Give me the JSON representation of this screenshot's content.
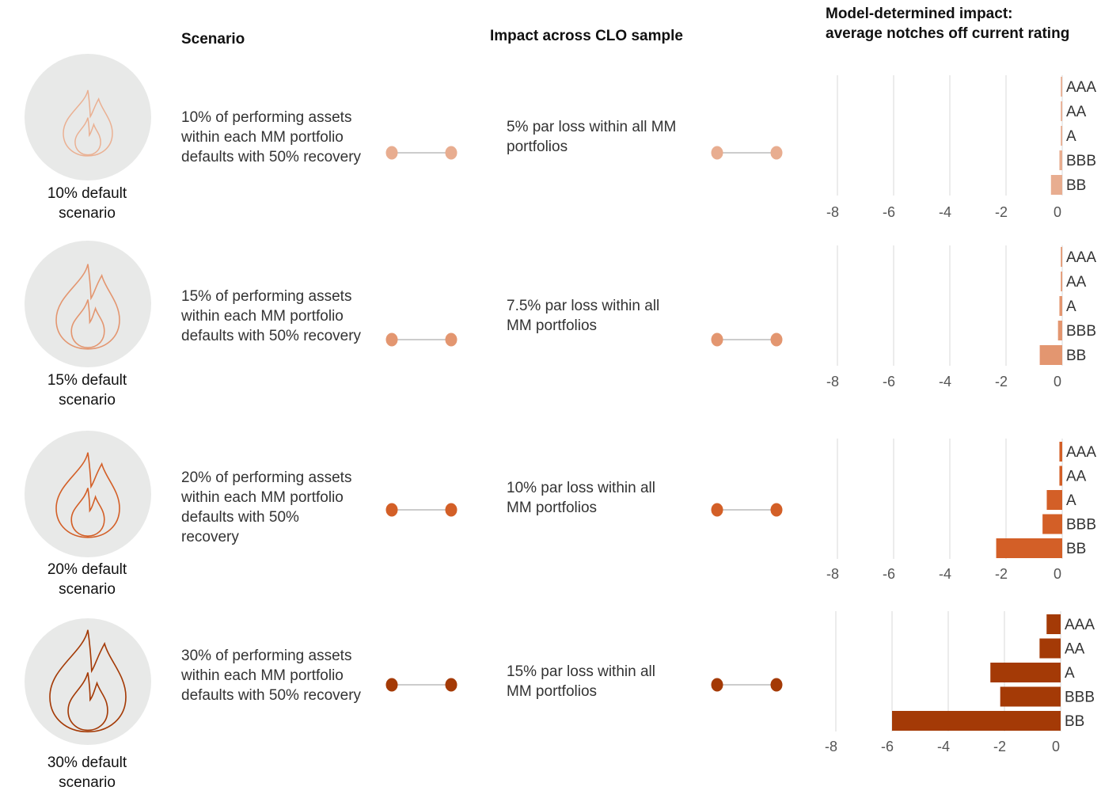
{
  "headers": {
    "scenario": "Scenario",
    "impact": "Impact across CLO sample",
    "model_line1": "Model-determined impact:",
    "model_line2": "average notches off current rating"
  },
  "rows": [
    {
      "label_line1": "10% default",
      "label_line2": "scenario",
      "desc": "10% of performing assets within each MM portfolio defaults with 50% recovery",
      "impact": "5% par loss within all MM portfolios",
      "color": "#e8ad90"
    },
    {
      "label_line1": "15% default",
      "label_line2": "scenario",
      "desc": "15% of performing assets within each MM portfolio defaults with 50% recovery",
      "impact": "7.5% par loss within all MM portfolios",
      "color": "#e39670"
    },
    {
      "label_line1": "20% default",
      "label_line2": "scenario",
      "desc": "20% of performing assets within each MM portfolio defaults with 50% recovery",
      "impact": "10% par loss within all MM portfolios",
      "color": "#d35f27"
    },
    {
      "label_line1": "30% default",
      "label_line2": "scenario",
      "desc": "30% of performing assets within each MM portfolio defaults with 50% recovery",
      "impact": "15% par loss within all MM portfolios",
      "color": "#a43a06"
    }
  ],
  "chart_data": [
    {
      "type": "bar",
      "orientation": "horizontal",
      "categories": [
        "AAA",
        "AA",
        "A",
        "BBB",
        "BB"
      ],
      "values": [
        -0.05,
        -0.05,
        -0.05,
        -0.1,
        -0.4
      ],
      "xlim": [
        -8,
        0
      ],
      "xticks": [
        "-8",
        "-6",
        "-4",
        "-2",
        "0"
      ],
      "grid": true
    },
    {
      "type": "bar",
      "orientation": "horizontal",
      "categories": [
        "AAA",
        "AA",
        "A",
        "BBB",
        "BB"
      ],
      "values": [
        -0.05,
        -0.05,
        -0.1,
        -0.15,
        -0.8
      ],
      "xlim": [
        -8,
        0
      ],
      "xticks": [
        "-8",
        "-6",
        "-4",
        "-2",
        "0"
      ],
      "grid": true
    },
    {
      "type": "bar",
      "orientation": "horizontal",
      "categories": [
        "AAA",
        "AA",
        "A",
        "BBB",
        "BB"
      ],
      "values": [
        -0.1,
        -0.1,
        -0.55,
        -0.7,
        -2.35
      ],
      "xlim": [
        -8,
        0
      ],
      "xticks": [
        "-8",
        "-6",
        "-4",
        "-2",
        "0"
      ],
      "grid": true
    },
    {
      "type": "bar",
      "orientation": "horizontal",
      "categories": [
        "AAA",
        "AA",
        "A",
        "BBB",
        "BB"
      ],
      "values": [
        -0.5,
        -0.75,
        -2.5,
        -2.15,
        -6.0
      ],
      "xlim": [
        -8,
        0
      ],
      "xticks": [
        "-8",
        "-6",
        "-4",
        "-2",
        "0"
      ],
      "grid": true
    }
  ]
}
